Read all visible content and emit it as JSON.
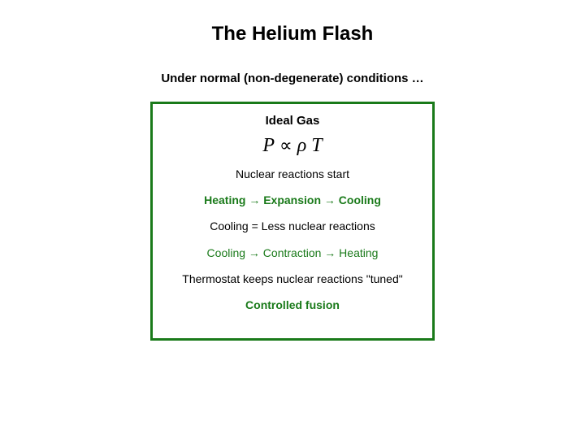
{
  "title": "The Helium Flash",
  "subtitle": "Under normal (non-degenerate) conditions …",
  "panel": {
    "border_color": "#1a7a1a",
    "heading": "Ideal Gas",
    "equation": {
      "lhs": "P",
      "prop": "∝",
      "rhs1": "ρ",
      "rhs2": "T"
    },
    "line1": "Nuclear reactions start",
    "line2": "Heating → Expansion → Cooling",
    "line2_color": "#1a7a1a",
    "line3": "Cooling = Less nuclear reactions",
    "line4": "Cooling → Contraction → Heating",
    "line4_color": "#1a7a1a",
    "line5": "Thermostat keeps nuclear reactions \"tuned\"",
    "line6": "Controlled fusion",
    "line6_color": "#1a7a1a"
  },
  "colors": {
    "background": "#ffffff",
    "text": "#000000"
  }
}
